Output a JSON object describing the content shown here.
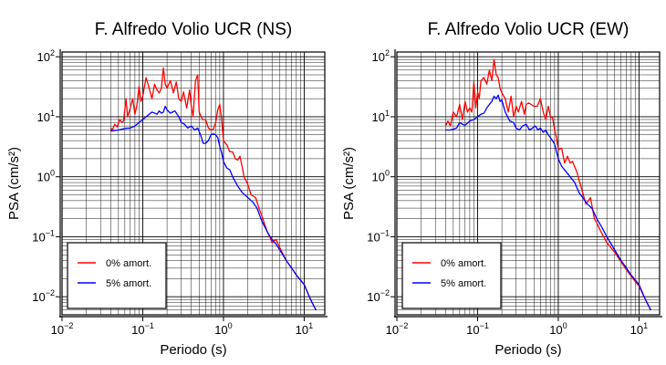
{
  "chart_data": [
    {
      "type": "line",
      "title": "F. Alfredo Volio UCR (NS)",
      "xlabel": "Periodo (s)",
      "ylabel": "PSA (cm/s²)",
      "xscale": "log",
      "yscale": "log",
      "xlim": [
        0.01,
        18
      ],
      "ylim": [
        0.005,
        120
      ],
      "x_ticks": [
        0.01,
        0.1,
        1,
        10
      ],
      "y_ticks": [
        0.01,
        0.1,
        1,
        10,
        100
      ],
      "grid": true,
      "legend_position": "bottom-left",
      "series": [
        {
          "name": "0% amort.",
          "color": "#ff0000",
          "x": [
            0.04,
            0.042,
            0.045,
            0.048,
            0.052,
            0.055,
            0.058,
            0.062,
            0.065,
            0.07,
            0.075,
            0.08,
            0.085,
            0.09,
            0.095,
            0.1,
            0.11,
            0.12,
            0.13,
            0.14,
            0.15,
            0.16,
            0.17,
            0.18,
            0.19,
            0.2,
            0.22,
            0.24,
            0.26,
            0.28,
            0.3,
            0.32,
            0.35,
            0.38,
            0.4,
            0.42,
            0.45,
            0.48,
            0.5,
            0.55,
            0.6,
            0.65,
            0.7,
            0.75,
            0.8,
            0.85,
            0.9,
            0.95,
            1.0,
            1.1,
            1.2,
            1.3,
            1.4,
            1.5,
            1.6,
            1.7,
            1.8,
            2.0,
            2.2,
            2.5,
            2.8,
            3.0,
            3.2,
            3.5,
            3.8,
            4.0,
            4.2,
            4.5,
            5.0,
            6.0,
            7.0,
            8.0,
            10.0,
            12.0,
            14.0
          ],
          "y": [
            6.5,
            6.0,
            7.5,
            6.8,
            9.0,
            8.0,
            8.5,
            20.0,
            10.0,
            14.0,
            20.0,
            11.0,
            16.0,
            32.0,
            18.0,
            22.0,
            45.0,
            30.0,
            20.0,
            35.0,
            28.0,
            25.0,
            30.0,
            65.0,
            35.0,
            30.0,
            40.0,
            25.0,
            38.0,
            20.0,
            18.0,
            26.0,
            14.0,
            28.0,
            15.0,
            10.0,
            40.0,
            50.0,
            12.0,
            9.0,
            9.0,
            6.5,
            6.0,
            6.2,
            8.0,
            13.0,
            16.0,
            9.0,
            4.0,
            3.4,
            2.6,
            2.6,
            2.0,
            1.9,
            2.2,
            1.5,
            1.0,
            0.75,
            0.5,
            0.45,
            0.28,
            0.22,
            0.17,
            0.12,
            0.095,
            0.08,
            0.085,
            0.09,
            0.065,
            0.04,
            0.03,
            0.023,
            0.016,
            0.009,
            0.006
          ]
        },
        {
          "name": "5% amort.",
          "color": "#0000ff",
          "x": [
            0.04,
            0.045,
            0.05,
            0.055,
            0.06,
            0.07,
            0.08,
            0.09,
            0.1,
            0.11,
            0.12,
            0.13,
            0.14,
            0.15,
            0.16,
            0.17,
            0.18,
            0.19,
            0.2,
            0.22,
            0.25,
            0.28,
            0.3,
            0.33,
            0.36,
            0.4,
            0.44,
            0.48,
            0.52,
            0.56,
            0.6,
            0.65,
            0.7,
            0.75,
            0.8,
            0.85,
            0.9,
            0.95,
            1.0,
            1.1,
            1.2,
            1.3,
            1.5,
            1.7,
            2.0,
            2.3,
            2.6,
            3.0,
            3.5,
            4.0,
            4.5,
            5.0,
            6.0,
            7.0,
            8.0,
            10.0,
            12.0,
            14.0
          ],
          "y": [
            5.8,
            5.9,
            6.0,
            6.2,
            6.4,
            6.5,
            7.0,
            8.0,
            9.0,
            10.0,
            11.0,
            12.0,
            11.5,
            11.0,
            12.5,
            11.5,
            12.0,
            15.0,
            13.0,
            11.5,
            12.5,
            10.0,
            8.0,
            7.5,
            6.5,
            7.0,
            6.0,
            6.5,
            5.0,
            3.6,
            3.6,
            4.0,
            5.0,
            5.2,
            5.0,
            4.5,
            3.2,
            2.5,
            1.8,
            1.4,
            1.3,
            1.0,
            0.7,
            0.55,
            0.45,
            0.38,
            0.3,
            0.18,
            0.12,
            0.09,
            0.075,
            0.06,
            0.04,
            0.03,
            0.023,
            0.016,
            0.009,
            0.006
          ]
        }
      ]
    },
    {
      "type": "line",
      "title": "F. Alfredo Volio UCR (EW)",
      "xlabel": "Periodo (s)",
      "ylabel": "PSA (cm/s²)",
      "xscale": "log",
      "yscale": "log",
      "xlim": [
        0.01,
        18
      ],
      "ylim": [
        0.005,
        120
      ],
      "x_ticks": [
        0.01,
        0.1,
        1,
        10
      ],
      "y_ticks": [
        0.01,
        0.1,
        1,
        10,
        100
      ],
      "grid": true,
      "legend_position": "bottom-left",
      "series": [
        {
          "name": "0% amort.",
          "color": "#ff0000",
          "x": [
            0.04,
            0.043,
            0.046,
            0.05,
            0.055,
            0.06,
            0.065,
            0.07,
            0.075,
            0.08,
            0.085,
            0.09,
            0.095,
            0.1,
            0.105,
            0.11,
            0.12,
            0.13,
            0.14,
            0.15,
            0.16,
            0.17,
            0.18,
            0.19,
            0.2,
            0.22,
            0.24,
            0.26,
            0.28,
            0.3,
            0.32,
            0.35,
            0.38,
            0.4,
            0.43,
            0.46,
            0.5,
            0.55,
            0.6,
            0.65,
            0.7,
            0.75,
            0.8,
            0.85,
            0.9,
            0.95,
            1.0,
            1.1,
            1.2,
            1.3,
            1.4,
            1.5,
            1.7,
            2.0,
            2.2,
            2.5,
            2.8,
            3.0,
            3.2,
            3.5,
            4.0,
            5.0,
            6.0,
            7.0,
            8.0,
            10.0,
            12.0,
            14.0
          ],
          "y": [
            7.0,
            8.5,
            7.0,
            12.0,
            10.0,
            16.0,
            9.0,
            18.0,
            12.0,
            14.0,
            12.0,
            38.0,
            14.0,
            26.0,
            20.0,
            40.0,
            45.0,
            35.0,
            60.0,
            40.0,
            90.0,
            50.0,
            45.0,
            30.0,
            25.0,
            20.0,
            12.0,
            22.0,
            10.0,
            15.0,
            12.0,
            18.0,
            11.0,
            16.0,
            17.0,
            16.0,
            15.0,
            15.0,
            20.0,
            12.0,
            9.0,
            15.0,
            10.0,
            9.5,
            6.0,
            4.5,
            2.8,
            3.0,
            1.7,
            2.2,
            1.7,
            1.8,
            1.2,
            0.55,
            0.35,
            0.45,
            0.2,
            0.17,
            0.14,
            0.11,
            0.08,
            0.055,
            0.038,
            0.028,
            0.022,
            0.015,
            0.009,
            0.006
          ]
        },
        {
          "name": "5% amort.",
          "color": "#0000ff",
          "x": [
            0.04,
            0.045,
            0.05,
            0.055,
            0.06,
            0.065,
            0.07,
            0.08,
            0.09,
            0.1,
            0.11,
            0.12,
            0.13,
            0.14,
            0.15,
            0.16,
            0.17,
            0.18,
            0.19,
            0.2,
            0.22,
            0.25,
            0.28,
            0.3,
            0.33,
            0.36,
            0.4,
            0.44,
            0.48,
            0.52,
            0.56,
            0.6,
            0.65,
            0.7,
            0.75,
            0.8,
            0.9,
            1.0,
            1.1,
            1.2,
            1.4,
            1.6,
            1.8,
            2.0,
            2.3,
            2.6,
            3.0,
            3.5,
            4.0,
            5.0,
            6.0,
            7.0,
            8.0,
            10.0,
            12.0,
            14.0
          ],
          "y": [
            6.0,
            6.0,
            6.2,
            6.5,
            8.0,
            7.5,
            7.2,
            8.5,
            9.0,
            10.0,
            11.0,
            11.5,
            14.0,
            16.0,
            18.0,
            22.0,
            20.0,
            23.0,
            18.0,
            19.0,
            12.0,
            8.5,
            8.0,
            6.5,
            6.0,
            7.0,
            7.5,
            6.0,
            6.5,
            7.0,
            6.0,
            6.5,
            5.5,
            6.0,
            5.0,
            4.5,
            3.5,
            2.0,
            1.5,
            1.3,
            1.0,
            0.8,
            0.55,
            0.45,
            0.35,
            0.3,
            0.2,
            0.14,
            0.1,
            0.06,
            0.04,
            0.03,
            0.023,
            0.016,
            0.009,
            0.006
          ]
        }
      ]
    }
  ]
}
